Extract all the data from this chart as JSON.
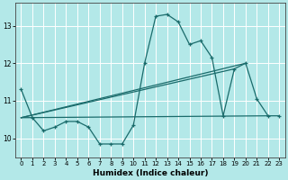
{
  "xlabel": "Humidex (Indice chaleur)",
  "bg_color": "#b3e8e8",
  "grid_color": "#ffffff",
  "line_color": "#1a6b6b",
  "marker": "+",
  "xlim": [
    -0.5,
    23.5
  ],
  "ylim": [
    9.5,
    13.6
  ],
  "yticks": [
    10,
    11,
    12,
    13
  ],
  "xticks": [
    0,
    1,
    2,
    3,
    4,
    5,
    6,
    7,
    8,
    9,
    10,
    11,
    12,
    13,
    14,
    15,
    16,
    17,
    18,
    19,
    20,
    21,
    22,
    23
  ],
  "main_x": [
    0,
    1,
    2,
    3,
    4,
    5,
    6,
    7,
    8,
    9,
    10,
    11,
    12,
    13,
    14,
    15,
    16,
    17,
    18,
    19,
    20,
    21,
    22,
    23
  ],
  "main_y": [
    11.3,
    10.55,
    10.2,
    10.3,
    10.45,
    10.45,
    10.3,
    9.85,
    9.85,
    9.85,
    10.35,
    12.0,
    13.25,
    13.3,
    13.1,
    12.5,
    12.6,
    12.15,
    10.6,
    11.85,
    12.0,
    11.05,
    10.6,
    10.6
  ],
  "straight_lines": [
    [
      [
        0,
        20
      ],
      [
        10.55,
        12.0
      ]
    ],
    [
      [
        0,
        22
      ],
      [
        10.55,
        10.6
      ]
    ],
    [
      [
        0,
        19
      ],
      [
        10.55,
        11.85
      ]
    ]
  ]
}
